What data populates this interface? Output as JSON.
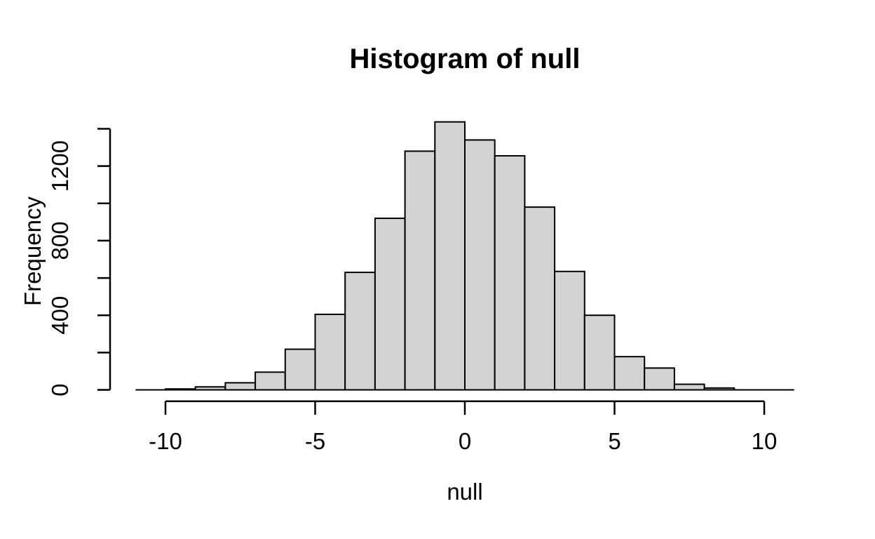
{
  "chart_data": {
    "type": "bar",
    "subtype": "histogram",
    "title": "Histogram of null",
    "xlabel": "null",
    "ylabel": "Frequency",
    "breaks": [
      -11,
      -10,
      -9,
      -8,
      -7,
      -6,
      -5,
      -4,
      -3,
      -2,
      -1,
      0,
      1,
      2,
      3,
      4,
      5,
      6,
      7,
      8,
      9,
      10,
      11
    ],
    "counts": [
      0,
      5,
      16,
      38,
      95,
      218,
      405,
      630,
      920,
      1280,
      1437,
      1340,
      1255,
      980,
      635,
      400,
      178,
      117,
      30,
      10,
      0,
      0
    ],
    "x_ticks": [
      -10,
      -5,
      0,
      5,
      10
    ],
    "x_tick_labels": [
      "-10",
      "-5",
      "0",
      "5",
      "10"
    ],
    "y_ticks": [
      0,
      200,
      400,
      600,
      800,
      1000,
      1200,
      1400
    ],
    "y_labeled_ticks": [
      0,
      400,
      800,
      1200
    ],
    "y_tick_labels": [
      "0",
      "400",
      "800",
      "1200"
    ],
    "xlim": [
      -11,
      11
    ],
    "ylim": [
      0,
      1437
    ],
    "grid": false,
    "legend": "none",
    "bar_fill": "#d3d3d3",
    "axis_color": "#000000",
    "background": "#ffffff"
  }
}
